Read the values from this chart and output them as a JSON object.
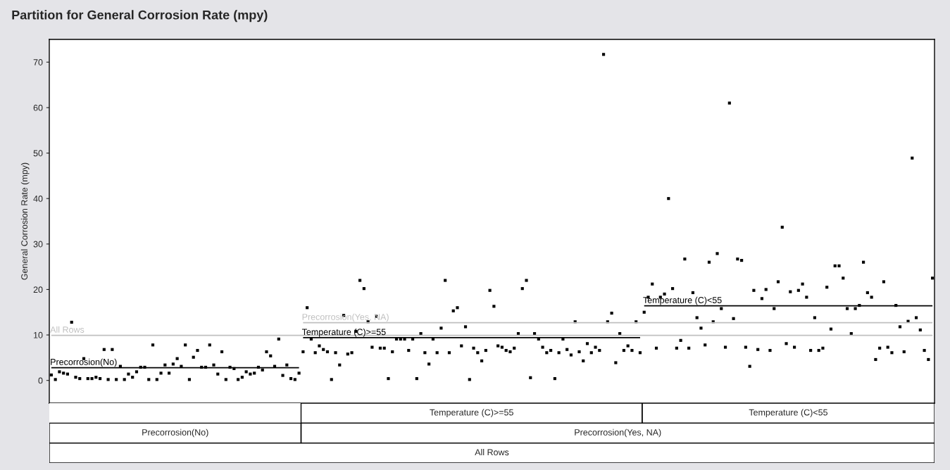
{
  "chart_data": {
    "type": "scatter",
    "title": "Partition for General Corrosion Rate (mpy)",
    "ylabel": "General Corrosion Rate (mpy)",
    "ylim": [
      -5,
      75
    ],
    "yticks": [
      0,
      10,
      20,
      30,
      40,
      50,
      60,
      70
    ],
    "grid": false,
    "legend": false,
    "marker": "square",
    "categories": [
      null,
      null,
      null,
      null,
      null,
      null,
      null,
      null,
      null,
      null,
      null,
      null,
      null,
      null,
      null,
      null,
      null,
      null,
      null,
      null,
      null,
      null,
      null,
      null,
      null,
      null,
      null,
      null,
      null,
      null,
      null,
      null,
      null,
      null,
      null,
      null,
      null,
      null,
      null,
      null,
      null,
      null,
      null,
      null,
      null,
      null,
      null,
      null,
      null,
      null,
      null,
      null,
      null,
      null,
      null,
      null,
      null,
      null,
      null,
      null,
      null,
      null,
      null,
      null,
      null,
      null,
      null,
      null,
      null,
      null,
      null,
      null,
      null,
      null,
      null,
      null,
      null,
      null,
      null,
      null,
      null,
      null,
      null,
      null,
      null,
      null,
      null,
      null,
      null,
      null,
      null,
      null,
      null,
      null,
      null,
      null,
      null,
      null,
      null,
      null,
      null,
      null,
      null,
      null,
      null,
      null,
      null,
      null,
      null,
      null,
      null,
      null,
      null,
      null,
      null,
      null,
      null,
      null,
      null,
      null,
      null,
      null,
      null,
      null,
      null,
      null,
      null,
      null,
      null,
      null,
      null,
      null,
      null,
      null,
      null,
      null,
      null,
      null,
      null,
      null,
      null,
      null,
      null,
      null,
      null,
      null,
      null,
      null,
      null,
      null,
      null,
      null,
      null,
      null,
      null,
      null,
      null,
      null,
      null,
      null,
      null,
      null,
      null,
      null,
      null,
      null,
      null,
      null,
      null,
      null,
      null,
      null,
      null,
      null,
      null,
      null,
      null,
      null,
      null,
      null,
      null,
      null,
      null,
      null,
      null,
      null,
      null,
      null,
      null,
      null,
      null,
      null,
      null,
      null,
      null,
      null,
      null,
      null,
      null,
      null,
      null,
      null,
      null,
      null,
      null,
      null,
      null,
      null,
      null,
      null,
      null,
      null,
      null,
      null,
      null,
      null,
      null,
      null
    ],
    "series": [
      {
        "color": "#000000",
        "values": [
          1.2,
          0.2,
          1.9,
          1.6,
          1.4,
          12.8,
          0.7,
          0.4,
          4.8,
          0.4,
          0.4,
          0.7,
          0.4,
          6.8,
          0.2,
          6.8,
          0.2,
          3.1,
          0.2,
          1.4,
          0.7,
          1.9,
          2.9,
          2.9,
          0.2,
          7.8,
          0.2,
          1.6,
          3.4,
          1.6,
          3.6,
          4.8,
          3.1,
          7.8,
          0.2,
          5.1,
          6.6,
          2.9,
          2.9,
          7.8,
          3.4,
          1.4,
          6.3,
          0.2,
          2.9,
          2.6,
          0.2,
          0.7,
          1.9,
          1.4,
          1.6,
          2.9,
          2.3,
          6.3,
          5.4,
          3.1,
          9.1,
          1.1,
          3.4,
          0.4,
          0.2,
          1.6,
          6.3,
          16.0,
          9.1,
          6.1,
          7.6,
          6.8,
          6.3,
          0.2,
          6.1,
          3.4,
          14.3,
          5.8,
          6.1,
          10.8,
          22.0,
          20.2,
          12.9,
          7.3,
          14.1,
          7.1,
          7.1,
          0.4,
          6.3,
          9.1,
          9.1,
          9.1,
          6.6,
          9.1,
          0.4,
          10.3,
          6.1,
          3.6,
          9.1,
          6.1,
          11.5,
          22.0,
          6.1,
          15.3,
          16.0,
          7.6,
          11.8,
          0.2,
          7.1,
          6.1,
          4.3,
          6.6,
          19.8,
          16.3,
          7.6,
          7.3,
          6.6,
          6.3,
          7.1,
          10.3,
          20.2,
          22.0,
          0.6,
          10.3,
          9.1,
          7.3,
          6.1,
          6.6,
          0.4,
          6.1,
          9.1,
          6.8,
          5.6,
          12.9,
          6.3,
          4.3,
          8.1,
          6.1,
          7.3,
          6.6,
          71.7,
          12.9,
          14.8,
          3.9,
          10.3,
          6.6,
          7.6,
          6.6,
          12.9,
          6.1,
          15.0,
          18.3,
          21.2,
          7.1,
          18.3,
          19.0,
          40.0,
          20.2,
          7.1,
          8.8,
          26.7,
          7.1,
          19.3,
          13.8,
          11.5,
          7.8,
          26.0,
          12.9,
          27.9,
          15.8,
          7.3,
          61.0,
          13.6,
          26.7,
          26.4,
          7.3,
          3.1,
          19.8,
          6.8,
          18.0,
          20.0,
          6.6,
          15.8,
          21.7,
          33.7,
          8.1,
          19.5,
          7.3,
          19.8,
          21.2,
          18.3,
          6.6,
          13.8,
          6.6,
          7.1,
          20.5,
          11.3,
          25.2,
          25.2,
          22.5,
          15.8,
          10.3,
          15.8,
          16.5,
          26.0,
          19.3,
          18.3,
          4.6,
          7.1,
          21.7,
          7.3,
          6.1,
          16.5,
          11.8,
          6.3,
          13.0,
          48.9,
          13.8,
          11.1,
          6.6,
          4.6,
          22.5
        ]
      },
      {
        "type": "line",
        "marker": "none",
        "name": "All Rows",
        "color": "#c0c0c0",
        "values": [
          9.9,
          9.9,
          9.9,
          9.9,
          9.9,
          9.9,
          9.9,
          9.9,
          9.9,
          9.9,
          9.9,
          9.9,
          9.9,
          9.9,
          9.9,
          9.9,
          9.9,
          9.9,
          9.9,
          9.9,
          9.9,
          9.9,
          9.9,
          9.9,
          9.9,
          9.9,
          9.9,
          9.9,
          9.9,
          9.9,
          9.9,
          9.9,
          9.9,
          9.9,
          9.9,
          9.9,
          9.9,
          9.9,
          9.9,
          9.9,
          9.9,
          9.9,
          9.9,
          9.9,
          9.9,
          9.9,
          9.9,
          9.9,
          9.9,
          9.9,
          9.9,
          9.9,
          9.9,
          9.9,
          9.9,
          9.9,
          9.9,
          9.9,
          9.9,
          9.9,
          9.9,
          9.9,
          9.9,
          9.9,
          9.9,
          9.9,
          9.9,
          9.9,
          9.9,
          9.9,
          9.9,
          9.9,
          9.9,
          9.9,
          9.9,
          9.9,
          9.9,
          9.9,
          9.9,
          9.9,
          9.9,
          9.9,
          9.9,
          9.9,
          9.9,
          9.9,
          9.9,
          9.9,
          9.9,
          9.9,
          9.9,
          9.9,
          9.9,
          9.9,
          9.9,
          9.9,
          9.9,
          9.9,
          9.9,
          9.9,
          9.9,
          9.9,
          9.9,
          9.9,
          9.9,
          9.9,
          9.9,
          9.9,
          9.9,
          9.9,
          9.9,
          9.9,
          9.9,
          9.9,
          9.9,
          9.9,
          9.9,
          9.9,
          9.9,
          9.9,
          9.9,
          9.9,
          9.9,
          9.9,
          9.9,
          9.9,
          9.9,
          9.9,
          9.9,
          9.9,
          9.9,
          9.9,
          9.9,
          9.9,
          9.9,
          9.9,
          9.9,
          9.9,
          9.9,
          9.9,
          9.9,
          9.9,
          9.9,
          9.9,
          9.9,
          9.9,
          9.9,
          9.9,
          9.9,
          9.9,
          9.9,
          9.9,
          9.9,
          9.9,
          9.9,
          9.9,
          9.9,
          9.9,
          9.9,
          9.9,
          9.9,
          9.9,
          9.9,
          9.9,
          9.9,
          9.9,
          9.9,
          9.9,
          9.9,
          9.9,
          9.9,
          9.9,
          9.9,
          9.9,
          9.9,
          9.9,
          9.9,
          9.9,
          9.9,
          9.9,
          9.9,
          9.9,
          9.9,
          9.9,
          9.9,
          9.9,
          9.9,
          9.9,
          9.9,
          9.9,
          9.9,
          9.9,
          9.9,
          9.9,
          9.9,
          9.9,
          9.9,
          9.9,
          9.9,
          9.9,
          9.9,
          9.9,
          9.9,
          9.9,
          9.9,
          9.9,
          9.9,
          9.9,
          9.9,
          9.9,
          9.9,
          9.9,
          9.9,
          9.9,
          9.9,
          9.9,
          9.9,
          9.9
        ]
      },
      {
        "type": "line",
        "marker": "none",
        "name": "Precorrosion(No)",
        "color": "#000000",
        "values": [
          2.8,
          2.8,
          2.8,
          2.8,
          2.8,
          2.8,
          2.8,
          2.8,
          2.8,
          2.8,
          2.8,
          2.8,
          2.8,
          2.8,
          2.8,
          2.8,
          2.8,
          2.8,
          2.8,
          2.8,
          2.8,
          2.8,
          2.8,
          2.8,
          2.8,
          2.8,
          2.8,
          2.8,
          2.8,
          2.8,
          2.8,
          2.8,
          2.8,
          2.8,
          2.8,
          2.8,
          2.8,
          2.8,
          2.8,
          2.8,
          2.8,
          2.8,
          2.8,
          2.8,
          2.8,
          2.8,
          2.8,
          2.8,
          2.8,
          2.8,
          2.8,
          2.8,
          2.8,
          2.8,
          2.8,
          2.8,
          2.8,
          2.8,
          2.8,
          2.8,
          2.8,
          2.8,
          null,
          null,
          null,
          null,
          null,
          null,
          null,
          null,
          null,
          null,
          null,
          null,
          null,
          null,
          null,
          null,
          null,
          null,
          null,
          null,
          null,
          null,
          null,
          null,
          null,
          null,
          null,
          null,
          null,
          null,
          null,
          null,
          null,
          null,
          null,
          null,
          null,
          null,
          null,
          null,
          null,
          null,
          null,
          null,
          null,
          null,
          null,
          null,
          null,
          null,
          null,
          null,
          null,
          null,
          null,
          null,
          null,
          null,
          null,
          null,
          null,
          null,
          null,
          null,
          null,
          null,
          null,
          null,
          null,
          null,
          null,
          null,
          null,
          null,
          null,
          null,
          null,
          null,
          null,
          null,
          null,
          null,
          null,
          null,
          null,
          null,
          null,
          null,
          null,
          null,
          null,
          null,
          null,
          null,
          null,
          null,
          null,
          null,
          null,
          null,
          null,
          null,
          null,
          null,
          null,
          null,
          null,
          null,
          null,
          null,
          null,
          null,
          null,
          null,
          null,
          null,
          null,
          null,
          null,
          null,
          null,
          null,
          null,
          null,
          null,
          null,
          null,
          null,
          null,
          null,
          null,
          null,
          null,
          null,
          null,
          null,
          null,
          null,
          null,
          null,
          null,
          null,
          null,
          null,
          null,
          null,
          null,
          null,
          null,
          null,
          null,
          null,
          null,
          null,
          null,
          null
        ]
      },
      {
        "type": "line",
        "marker": "none",
        "name": "Precorrosion(Yes, NA)",
        "color": "#c0c0c0",
        "values": [
          null,
          null,
          null,
          null,
          null,
          null,
          null,
          null,
          null,
          null,
          null,
          null,
          null,
          null,
          null,
          null,
          null,
          null,
          null,
          null,
          null,
          null,
          null,
          null,
          null,
          null,
          null,
          null,
          null,
          null,
          null,
          null,
          null,
          null,
          null,
          null,
          null,
          null,
          null,
          null,
          null,
          null,
          null,
          null,
          null,
          null,
          null,
          null,
          null,
          null,
          null,
          null,
          null,
          null,
          null,
          null,
          null,
          null,
          null,
          null,
          null,
          null,
          12.7,
          12.7,
          12.7,
          12.7,
          12.7,
          12.7,
          12.7,
          12.7,
          12.7,
          12.7,
          12.7,
          12.7,
          12.7,
          12.7,
          12.7,
          12.7,
          12.7,
          12.7,
          12.7,
          12.7,
          12.7,
          12.7,
          12.7,
          12.7,
          12.7,
          12.7,
          12.7,
          12.7,
          12.7,
          12.7,
          12.7,
          12.7,
          12.7,
          12.7,
          12.7,
          12.7,
          12.7,
          12.7,
          12.7,
          12.7,
          12.7,
          12.7,
          12.7,
          12.7,
          12.7,
          12.7,
          12.7,
          12.7,
          12.7,
          12.7,
          12.7,
          12.7,
          12.7,
          12.7,
          12.7,
          12.7,
          12.7,
          12.7,
          12.7,
          12.7,
          12.7,
          12.7,
          12.7,
          12.7,
          12.7,
          12.7,
          12.7,
          12.7,
          12.7,
          12.7,
          12.7,
          12.7,
          12.7,
          12.7,
          12.7,
          12.7,
          12.7,
          12.7,
          12.7,
          12.7,
          12.7,
          12.7,
          12.7,
          12.7,
          12.7,
          12.7,
          12.7,
          12.7,
          12.7,
          12.7,
          12.7,
          12.7,
          12.7,
          12.7,
          12.7,
          12.7,
          12.7,
          12.7,
          12.7,
          12.7,
          12.7,
          12.7,
          12.7,
          12.7,
          12.7,
          12.7,
          12.7,
          12.7,
          12.7,
          12.7,
          12.7,
          12.7,
          12.7,
          12.7,
          12.7,
          12.7,
          12.7,
          12.7,
          12.7,
          12.7,
          12.7,
          12.7,
          12.7,
          12.7,
          12.7,
          12.7,
          12.7,
          12.7,
          12.7,
          12.7,
          12.7,
          12.7,
          12.7,
          12.7,
          12.7,
          12.7,
          12.7,
          12.7,
          12.7,
          12.7,
          12.7,
          12.7,
          12.7,
          12.7,
          12.7,
          12.7,
          12.7,
          12.7,
          12.7,
          12.7,
          12.7,
          12.7,
          12.7,
          12.7,
          12.7,
          12.7
        ]
      },
      {
        "type": "line",
        "marker": "none",
        "name": "Temperature (C)>=55",
        "color": "#000000",
        "values": [
          null,
          null,
          null,
          null,
          null,
          null,
          null,
          null,
          null,
          null,
          null,
          null,
          null,
          null,
          null,
          null,
          null,
          null,
          null,
          null,
          null,
          null,
          null,
          null,
          null,
          null,
          null,
          null,
          null,
          null,
          null,
          null,
          null,
          null,
          null,
          null,
          null,
          null,
          null,
          null,
          null,
          null,
          null,
          null,
          null,
          null,
          null,
          null,
          null,
          null,
          null,
          null,
          null,
          null,
          null,
          null,
          null,
          null,
          null,
          null,
          null,
          null,
          9.4,
          9.4,
          9.4,
          9.4,
          9.4,
          9.4,
          9.4,
          9.4,
          9.4,
          9.4,
          9.4,
          9.4,
          9.4,
          9.4,
          9.4,
          9.4,
          9.4,
          9.4,
          9.4,
          9.4,
          9.4,
          9.4,
          9.4,
          9.4,
          9.4,
          9.4,
          9.4,
          9.4,
          9.4,
          9.4,
          9.4,
          9.4,
          9.4,
          9.4,
          9.4,
          9.4,
          9.4,
          9.4,
          9.4,
          9.4,
          9.4,
          9.4,
          9.4,
          9.4,
          9.4,
          9.4,
          9.4,
          9.4,
          9.4,
          9.4,
          9.4,
          9.4,
          9.4,
          9.4,
          9.4,
          9.4,
          9.4,
          9.4,
          9.4,
          9.4,
          9.4,
          9.4,
          9.4,
          9.4,
          9.4,
          9.4,
          9.4,
          9.4,
          9.4,
          9.4,
          9.4,
          9.4,
          9.4,
          9.4,
          9.4,
          9.4,
          9.4,
          9.4,
          9.4,
          9.4,
          9.4,
          9.4,
          9.4,
          9.4,
          null,
          null,
          null,
          null,
          null,
          null,
          null,
          null,
          null,
          null,
          null,
          null,
          null,
          null,
          null,
          null,
          null,
          null,
          null,
          null,
          null,
          null,
          null,
          null,
          null,
          null,
          null,
          null,
          null,
          null,
          null,
          null,
          null,
          null,
          null,
          null,
          null,
          null,
          null,
          null,
          null,
          null,
          null,
          null,
          null,
          null,
          null,
          null,
          null,
          null,
          null,
          null,
          null,
          null,
          null,
          null,
          null,
          null,
          null,
          null,
          null,
          null,
          null,
          null,
          null,
          null,
          null,
          null,
          null,
          null,
          null,
          null
        ]
      },
      {
        "type": "line",
        "marker": "none",
        "name": "Temperature (C)<55",
        "color": "#000000",
        "values": [
          null,
          null,
          null,
          null,
          null,
          null,
          null,
          null,
          null,
          null,
          null,
          null,
          null,
          null,
          null,
          null,
          null,
          null,
          null,
          null,
          null,
          null,
          null,
          null,
          null,
          null,
          null,
          null,
          null,
          null,
          null,
          null,
          null,
          null,
          null,
          null,
          null,
          null,
          null,
          null,
          null,
          null,
          null,
          null,
          null,
          null,
          null,
          null,
          null,
          null,
          null,
          null,
          null,
          null,
          null,
          null,
          null,
          null,
          null,
          null,
          null,
          null,
          null,
          null,
          null,
          null,
          null,
          null,
          null,
          null,
          null,
          null,
          null,
          null,
          null,
          null,
          null,
          null,
          null,
          null,
          null,
          null,
          null,
          null,
          null,
          null,
          null,
          null,
          null,
          null,
          null,
          null,
          null,
          null,
          null,
          null,
          null,
          null,
          null,
          null,
          null,
          null,
          null,
          null,
          null,
          null,
          null,
          null,
          null,
          null,
          null,
          null,
          null,
          null,
          null,
          null,
          null,
          null,
          null,
          null,
          null,
          null,
          null,
          null,
          null,
          null,
          null,
          null,
          null,
          null,
          null,
          null,
          null,
          null,
          null,
          null,
          null,
          null,
          null,
          null,
          null,
          null,
          null,
          null,
          null,
          null,
          16.4,
          16.4,
          16.4,
          16.4,
          16.4,
          16.4,
          16.4,
          16.4,
          16.4,
          16.4,
          16.4,
          16.4,
          16.4,
          16.4,
          16.4,
          16.4,
          16.4,
          16.4,
          16.4,
          16.4,
          16.4,
          16.4,
          16.4,
          16.4,
          16.4,
          16.4,
          16.4,
          16.4,
          16.4,
          16.4,
          16.4,
          16.4,
          16.4,
          16.4,
          16.4,
          16.4,
          16.4,
          16.4,
          16.4,
          16.4,
          16.4,
          16.4,
          16.4,
          16.4,
          16.4,
          16.4,
          16.4,
          16.4,
          16.4,
          16.4,
          16.4,
          16.4,
          16.4,
          16.4,
          16.4,
          16.4,
          16.4,
          16.4,
          16.4,
          16.4,
          16.4,
          16.4,
          16.4,
          16.4,
          16.4,
          16.4,
          16.4,
          16.4,
          16.4,
          16.4,
          16.4,
          16.4
        ]
      }
    ],
    "annotations": [
      "All Rows",
      "Precorrosion(No)",
      "Precorrosion(Yes, NA)",
      "Temperature (C)>=55",
      "Temperature (C)<55"
    ]
  }
}
